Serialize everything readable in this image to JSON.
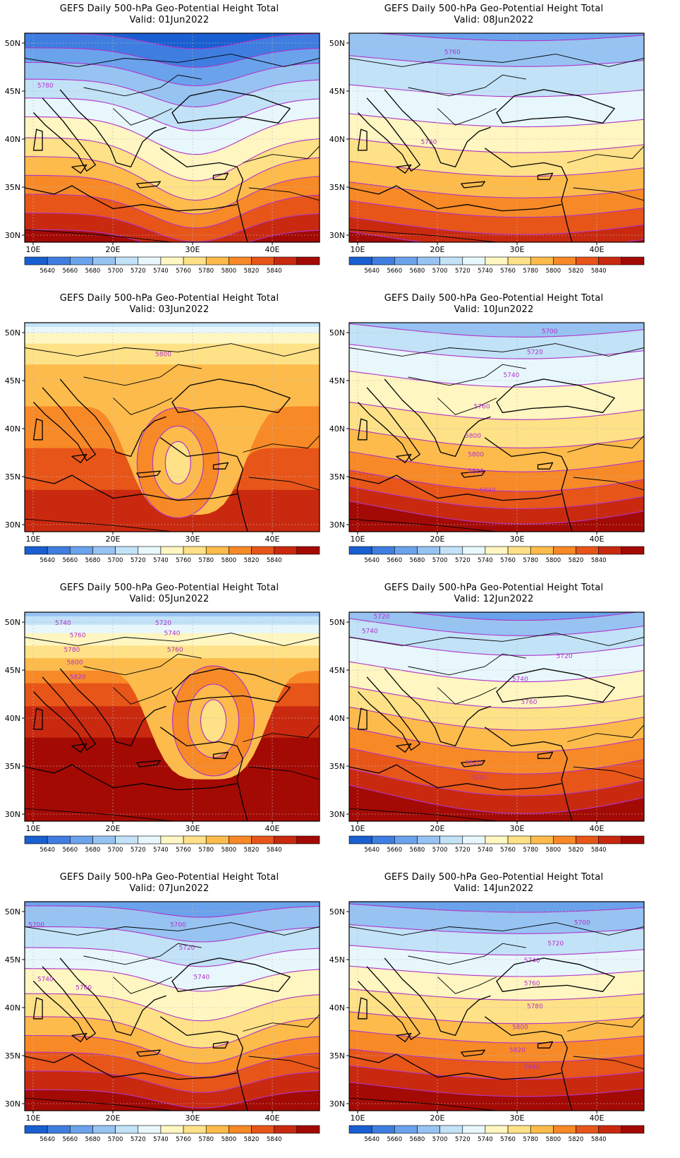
{
  "figure": {
    "panels": [
      {
        "title": "GEFS Daily 500-hPa Geo-Potential Height Total",
        "valid": "Valid: 01Jun2022",
        "contour_labels": [
          "5780"
        ]
      },
      {
        "title": "GEFS Daily 500-hPa Geo-Potential Height Total",
        "valid": "Valid: 08Jun2022",
        "contour_labels": [
          "5760",
          "5760"
        ]
      },
      {
        "title": "GEFS Daily 500-hPa Geo-Potential Height Total",
        "valid": "Valid: 03Jun2022",
        "contour_labels": [
          "5800"
        ]
      },
      {
        "title": "GEFS Daily 500-hPa Geo-Potential Height Total",
        "valid": "Valid: 10Jun2022",
        "contour_labels": [
          "5700",
          "5720",
          "5740",
          "5760",
          "5800",
          "5800",
          "5820",
          "5840"
        ]
      },
      {
        "title": "GEFS Daily 500-hPa Geo-Potential Height Total",
        "valid": "Valid: 05Jun2022",
        "contour_labels": [
          "5740",
          "5720",
          "5740",
          "5760",
          "5760",
          "5780",
          "5800",
          "5820"
        ]
      },
      {
        "title": "GEFS Daily 500-hPa Geo-Potential Height Total",
        "valid": "Valid: 12Jun2022",
        "contour_labels": [
          "5720",
          "5740",
          "5720",
          "5740",
          "5760",
          "5820",
          "5840"
        ]
      },
      {
        "title": "GEFS Daily 500-hPa Geo-Potential Height Total",
        "valid": "Valid: 07Jun2022",
        "contour_labels": [
          "5700",
          "5700",
          "5720",
          "5740",
          "5740",
          "5760"
        ]
      },
      {
        "title": "GEFS Daily 500-hPa Geo-Potential Height Total",
        "valid": "Valid: 14Jun2022",
        "contour_labels": [
          "5700",
          "5720",
          "5740",
          "5760",
          "5780",
          "5800",
          "5820",
          "5840"
        ]
      }
    ],
    "lon_ticks": [
      "10E",
      "20E",
      "30E",
      "40E"
    ],
    "lat_ticks": [
      "50N",
      "45N",
      "40N",
      "35N",
      "30N"
    ],
    "colorbar": {
      "labels": [
        "5640",
        "5660",
        "5680",
        "5700",
        "5720",
        "5740",
        "5760",
        "5780",
        "5800",
        "5820",
        "5840"
      ],
      "colors": [
        "#1a5fd1",
        "#3f7ee0",
        "#6aa2ec",
        "#97c3f2",
        "#c2e2f8",
        "#e8f7fb",
        "#fff6c2",
        "#ffe187",
        "#fcbb4a",
        "#f78a27",
        "#e85519",
        "#c92a0f",
        "#a30a04"
      ]
    },
    "contour_color": "#b034c8"
  }
}
